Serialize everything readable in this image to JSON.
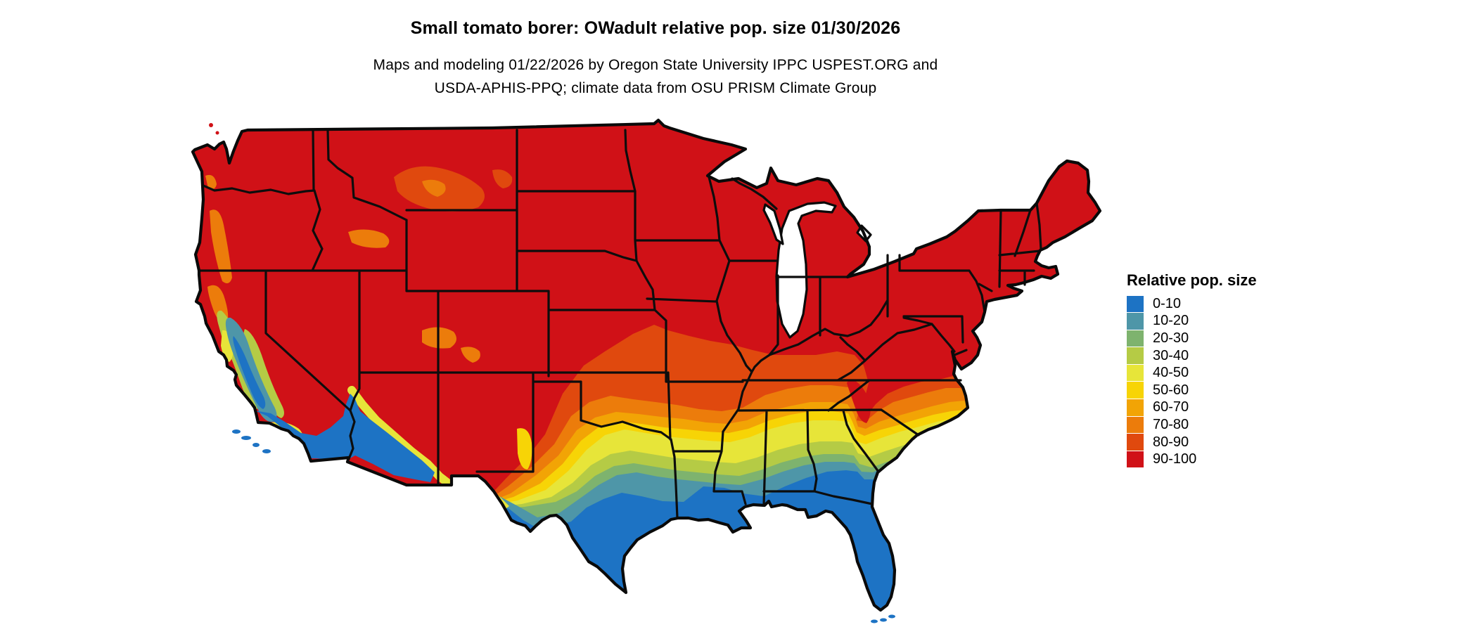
{
  "header": {
    "title": "Small tomato borer: OWadult relative pop. size 01/30/2026",
    "subtitle_line1": "Maps and modeling 01/22/2026 by Oregon State University IPPC USPEST.ORG and",
    "subtitle_line2": "USDA-APHIS-PPQ; climate data from OSU PRISM Climate Group"
  },
  "legend": {
    "title": "Relative pop. size",
    "items": [
      {
        "label": "0-10",
        "color": "#1d73c4"
      },
      {
        "label": "10-20",
        "color": "#4e96a8"
      },
      {
        "label": "20-30",
        "color": "#7eb36e"
      },
      {
        "label": "30-40",
        "color": "#b5cb45"
      },
      {
        "label": "40-50",
        "color": "#e7e539"
      },
      {
        "label": "50-60",
        "color": "#f7d406"
      },
      {
        "label": "60-70",
        "color": "#f2a405"
      },
      {
        "label": "70-80",
        "color": "#ec7c0b"
      },
      {
        "label": "80-90",
        "color": "#e0490e"
      },
      {
        "label": "90-100",
        "color": "#d01117"
      }
    ]
  }
}
